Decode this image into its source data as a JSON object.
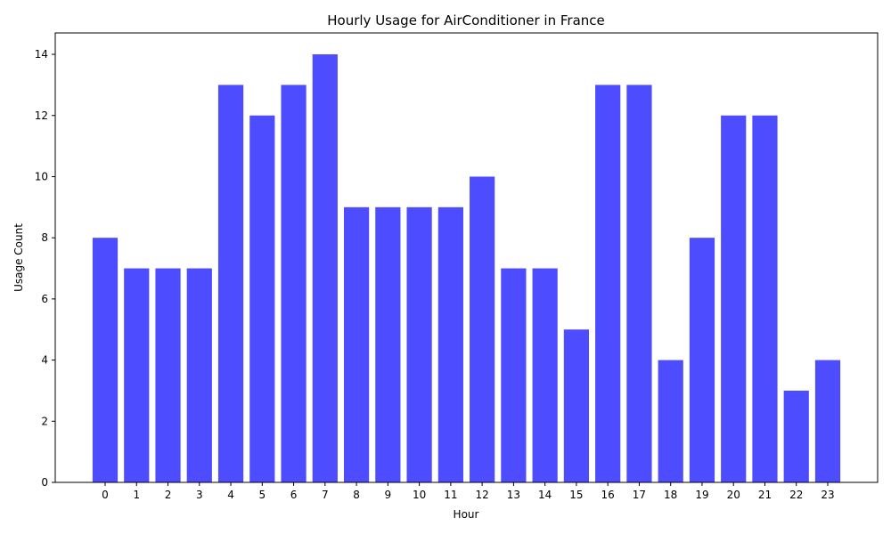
{
  "chart_data": {
    "type": "bar",
    "title": "Hourly Usage for AirConditioner in France",
    "xlabel": "Hour",
    "ylabel": "Usage Count",
    "categories": [
      "0",
      "1",
      "2",
      "3",
      "4",
      "5",
      "6",
      "7",
      "8",
      "9",
      "10",
      "11",
      "12",
      "13",
      "14",
      "15",
      "16",
      "17",
      "18",
      "19",
      "20",
      "21",
      "22",
      "23"
    ],
    "values": [
      8,
      7,
      7,
      7,
      13,
      12,
      13,
      14,
      9,
      9,
      9,
      9,
      10,
      7,
      7,
      5,
      13,
      13,
      4,
      8,
      12,
      12,
      3,
      4
    ],
    "ylim": [
      0,
      14.7
    ],
    "yticks": [
      0,
      2,
      4,
      6,
      8,
      10,
      12,
      14
    ],
    "bar_color": "#4d4dff",
    "grid": false,
    "legend": "none"
  }
}
